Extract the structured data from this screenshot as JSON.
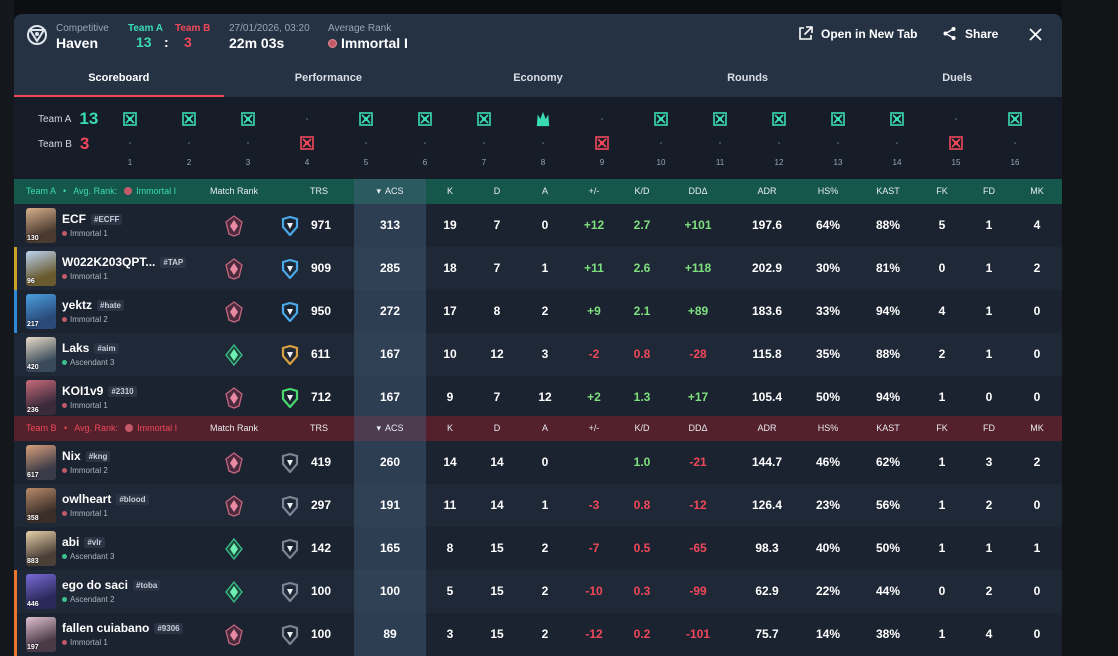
{
  "header": {
    "mode_label": "Competitive",
    "map": "Haven",
    "team_a_label": "Team A",
    "team_b_label": "Team B",
    "team_a_score": "13",
    "team_b_score": "3",
    "separator": ":",
    "date": "27/01/2026, 03:20",
    "duration": "22m 03s",
    "avg_rank_label": "Average Rank",
    "avg_rank": "Immortal I",
    "open_tab_label": "Open in New Tab",
    "share_label": "Share"
  },
  "tabs": [
    "Scoreboard",
    "Performance",
    "Economy",
    "Rounds",
    "Duels"
  ],
  "timeline": {
    "team_a_label": "Team A",
    "team_b_label": "Team B",
    "team_a_score": "13",
    "team_b_score": "3",
    "rounds": [
      {
        "n": "1",
        "winner": "A",
        "type": "elim"
      },
      {
        "n": "2",
        "winner": "A",
        "type": "elim"
      },
      {
        "n": "3",
        "winner": "A",
        "type": "elim"
      },
      {
        "n": "4",
        "winner": "B",
        "type": "elim"
      },
      {
        "n": "5",
        "winner": "A",
        "type": "elim"
      },
      {
        "n": "6",
        "winner": "A",
        "type": "elim"
      },
      {
        "n": "7",
        "winner": "A",
        "type": "elim"
      },
      {
        "n": "8",
        "winner": "A",
        "type": "spike"
      },
      {
        "n": "9",
        "winner": "B",
        "type": "elim"
      },
      {
        "n": "10",
        "winner": "A",
        "type": "elim"
      },
      {
        "n": "11",
        "winner": "A",
        "type": "elim"
      },
      {
        "n": "12",
        "winner": "A",
        "type": "elim"
      },
      {
        "n": "13",
        "winner": "A",
        "type": "elim"
      },
      {
        "n": "14",
        "winner": "A",
        "type": "elim"
      },
      {
        "n": "15",
        "winner": "B",
        "type": "elim"
      },
      {
        "n": "16",
        "winner": "A",
        "type": "elim"
      }
    ]
  },
  "columns": {
    "match_rank": "Match Rank",
    "trs": "TRS",
    "acs": "ACS",
    "k": "K",
    "d": "D",
    "a": "A",
    "pm": "+/-",
    "kd": "K/D",
    "dd": "DDΔ",
    "adr": "ADR",
    "hs": "HS%",
    "kast": "KAST",
    "fk": "FK",
    "fd": "FD",
    "mk": "MK",
    "sort_arrow": "▾"
  },
  "team_a": {
    "label": "Team A",
    "bullet": "•",
    "avg_rank_label": "Avg. Rank:",
    "avg_rank": "Immortal I",
    "color": "#3bdbb1",
    "players": [
      {
        "name": "ECF",
        "tag": "#ECFF",
        "rank": "Immortal 1",
        "level": "130",
        "trs": "971",
        "acs": "313",
        "k": "19",
        "d": "7",
        "a": "0",
        "pm": "+12",
        "kd": "2.7",
        "dd": "+101",
        "adr": "197.6",
        "hs": "64%",
        "kast": "88%",
        "fk": "5",
        "fd": "1",
        "mk": "4"
      },
      {
        "name": "W022K203QPT...",
        "tag": "#TAP",
        "rank": "Immortal 1",
        "level": "96",
        "trs": "909",
        "acs": "285",
        "k": "18",
        "d": "7",
        "a": "1",
        "pm": "+11",
        "kd": "2.6",
        "dd": "+118",
        "adr": "202.9",
        "hs": "30%",
        "kast": "81%",
        "fk": "0",
        "fd": "1",
        "mk": "2"
      },
      {
        "name": "yektz",
        "tag": "#hate",
        "rank": "Immortal 2",
        "level": "217",
        "trs": "950",
        "acs": "272",
        "k": "17",
        "d": "8",
        "a": "2",
        "pm": "+9",
        "kd": "2.1",
        "dd": "+89",
        "adr": "183.6",
        "hs": "33%",
        "kast": "94%",
        "fk": "4",
        "fd": "1",
        "mk": "0"
      },
      {
        "name": "Laks",
        "tag": "#aim",
        "rank": "Ascendant 3",
        "level": "420",
        "trs": "611",
        "acs": "167",
        "k": "10",
        "d": "12",
        "a": "3",
        "pm": "-2",
        "kd": "0.8",
        "dd": "-28",
        "adr": "115.8",
        "hs": "35%",
        "kast": "88%",
        "fk": "2",
        "fd": "1",
        "mk": "0"
      },
      {
        "name": "KOI1v9",
        "tag": "#2310",
        "rank": "Immortal 1",
        "level": "236",
        "trs": "712",
        "acs": "167",
        "k": "9",
        "d": "7",
        "a": "12",
        "pm": "+2",
        "kd": "1.3",
        "dd": "+17",
        "adr": "105.4",
        "hs": "50%",
        "kast": "94%",
        "fk": "1",
        "fd": "0",
        "mk": "0"
      }
    ]
  },
  "team_b": {
    "label": "Team B",
    "bullet": "•",
    "avg_rank_label": "Avg. Rank:",
    "avg_rank": "Immortal I",
    "color": "#f0485a",
    "players": [
      {
        "name": "Nix",
        "tag": "#kng",
        "rank": "Immortal 2",
        "level": "617",
        "trs": "419",
        "acs": "260",
        "k": "14",
        "d": "14",
        "a": "0",
        "pm": "",
        "kd": "1.0",
        "dd": "-21",
        "adr": "144.7",
        "hs": "46%",
        "kast": "62%",
        "fk": "1",
        "fd": "3",
        "mk": "2"
      },
      {
        "name": "owlheart",
        "tag": "#blood",
        "rank": "Immortal 1",
        "level": "358",
        "trs": "297",
        "acs": "191",
        "k": "11",
        "d": "14",
        "a": "1",
        "pm": "-3",
        "kd": "0.8",
        "dd": "-12",
        "adr": "126.4",
        "hs": "23%",
        "kast": "56%",
        "fk": "1",
        "fd": "2",
        "mk": "0"
      },
      {
        "name": "abi",
        "tag": "#vlr",
        "rank": "Ascendant 3",
        "level": "883",
        "trs": "142",
        "acs": "165",
        "k": "8",
        "d": "15",
        "a": "2",
        "pm": "-7",
        "kd": "0.5",
        "dd": "-65",
        "adr": "98.3",
        "hs": "40%",
        "kast": "50%",
        "fk": "1",
        "fd": "1",
        "mk": "1"
      },
      {
        "name": "ego do saci",
        "tag": "#toba",
        "rank": "Ascendant 2",
        "level": "446",
        "trs": "100",
        "acs": "100",
        "k": "5",
        "d": "15",
        "a": "2",
        "pm": "-10",
        "kd": "0.3",
        "dd": "-99",
        "adr": "62.9",
        "hs": "22%",
        "kast": "44%",
        "fk": "0",
        "fd": "2",
        "mk": "0"
      },
      {
        "name": "fallen cuiabano",
        "tag": "#9306",
        "rank": "Immortal 1",
        "level": "197",
        "trs": "100",
        "acs": "89",
        "k": "3",
        "d": "15",
        "a": "2",
        "pm": "-12",
        "kd": "0.2",
        "dd": "-101",
        "adr": "75.7",
        "hs": "14%",
        "kast": "38%",
        "fk": "1",
        "fd": "4",
        "mk": "0"
      }
    ]
  },
  "colors": {
    "team_a": "#3bdbb1",
    "team_b": "#f0485a",
    "positive": "#7ee07e",
    "negative": "#f0485a",
    "header_a": "#16574b",
    "header_b": "#53202c"
  }
}
